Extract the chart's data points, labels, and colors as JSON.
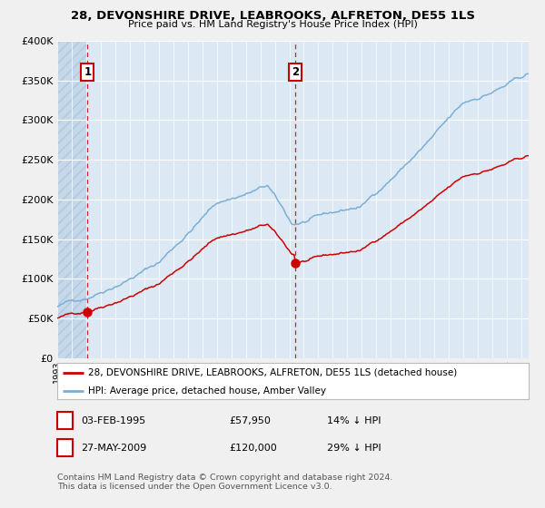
{
  "title1": "28, DEVONSHIRE DRIVE, LEABROOKS, ALFRETON, DE55 1LS",
  "title2": "Price paid vs. HM Land Registry's House Price Index (HPI)",
  "ylabel_ticks": [
    "£0",
    "£50K",
    "£100K",
    "£150K",
    "£200K",
    "£250K",
    "£300K",
    "£350K",
    "£400K"
  ],
  "ytick_values": [
    0,
    50000,
    100000,
    150000,
    200000,
    250000,
    300000,
    350000,
    400000
  ],
  "ylim": [
    0,
    400000
  ],
  "xlim_start": 1993.0,
  "xlim_end": 2025.5,
  "hpi_color": "#7bafd4",
  "price_color": "#cc0000",
  "bg_color": "#dce9f5",
  "fig_bg_color": "#f0f0f0",
  "point1_x": 1995.09,
  "point1_y": 57950,
  "point2_x": 2009.41,
  "point2_y": 120000,
  "legend_house": "28, DEVONSHIRE DRIVE, LEABROOKS, ALFRETON, DE55 1LS (detached house)",
  "legend_hpi": "HPI: Average price, detached house, Amber Valley",
  "note1_label": "1",
  "note1_date": "03-FEB-1995",
  "note1_price": "£57,950",
  "note1_pct": "14% ↓ HPI",
  "note2_label": "2",
  "note2_date": "27-MAY-2009",
  "note2_price": "£120,000",
  "note2_pct": "29% ↓ HPI",
  "footer": "Contains HM Land Registry data © Crown copyright and database right 2024.\nThis data is licensed under the Open Government Licence v3.0."
}
